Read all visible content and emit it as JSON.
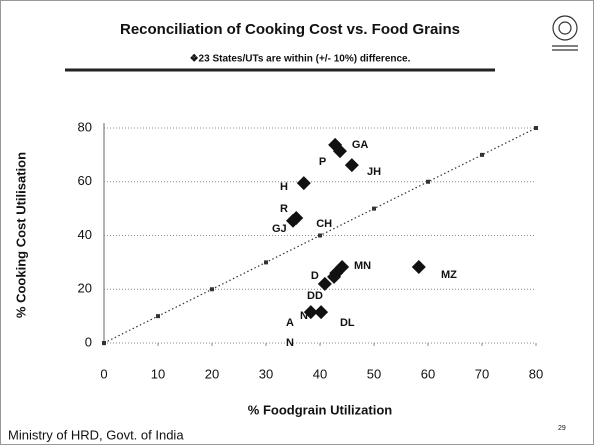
{
  "chart_data": {
    "type": "scatter",
    "title": "Reconciliation of Cooking Cost vs. Food Grains",
    "subtitle": "❖23 States/UTs are within (+/- 10%) difference.",
    "xlabel": "% Foodgrain Utilization",
    "ylabel": "% Cooking Cost Utilisation",
    "footer": "Ministry of HRD, Govt. of India",
    "page_number": "29",
    "xlim": [
      0,
      80
    ],
    "xticks": [
      0,
      10,
      20,
      30,
      40,
      50,
      60,
      70,
      80
    ],
    "ylim": [
      0,
      80
    ],
    "yticks": [
      0,
      20,
      40,
      60,
      80
    ],
    "grid": true,
    "series": [
      {
        "color": "#111111",
        "marker": "diamond",
        "x": [
          42.8,
          43.7,
          45.9,
          37,
          35.6,
          35,
          44.1,
          43,
          42.6,
          40.9,
          58.3,
          40.2,
          38.3
        ],
        "values": [
          73.7,
          71.4,
          66.2,
          59.5,
          46.5,
          45.5,
          28.3,
          26,
          24.6,
          22,
          28.3,
          11.5,
          11.5
        ]
      },
      {
        "color": "#333333",
        "marker": "square",
        "line": "dotted",
        "x": [
          0,
          10,
          20,
          30,
          40,
          50,
          60,
          70,
          80
        ],
        "values": [
          0,
          10,
          20,
          30,
          40,
          50,
          60,
          70,
          80
        ]
      }
    ],
    "annotations": [
      {
        "text": "GA",
        "x": 45.9,
        "y": 73.7
      },
      {
        "text": "P",
        "x": 39.8,
        "y": 67.3
      },
      {
        "text": "JH",
        "x": 48.7,
        "y": 63.6
      },
      {
        "text": "H",
        "x": 32.6,
        "y": 58
      },
      {
        "text": "R",
        "x": 32.6,
        "y": 49.9
      },
      {
        "text": "GJ",
        "x": 31.1,
        "y": 42.4
      },
      {
        "text": "CH",
        "x": 39.3,
        "y": 44.3
      },
      {
        "text": "MN",
        "x": 46.3,
        "y": 28.7
      },
      {
        "text": "MZ",
        "x": 62.4,
        "y": 25.3
      },
      {
        "text": "D",
        "x": 38.3,
        "y": 24.9
      },
      {
        "text": "DD",
        "x": 37.6,
        "y": 17.5
      },
      {
        "text": "N",
        "x": 36.3,
        "y": 10
      },
      {
        "text": "DL",
        "x": 43.7,
        "y": 7.4
      },
      {
        "text": "A",
        "x": 33.7,
        "y": 7.4
      },
      {
        "text": "N",
        "x": 33.7,
        "y": 0
      }
    ]
  }
}
